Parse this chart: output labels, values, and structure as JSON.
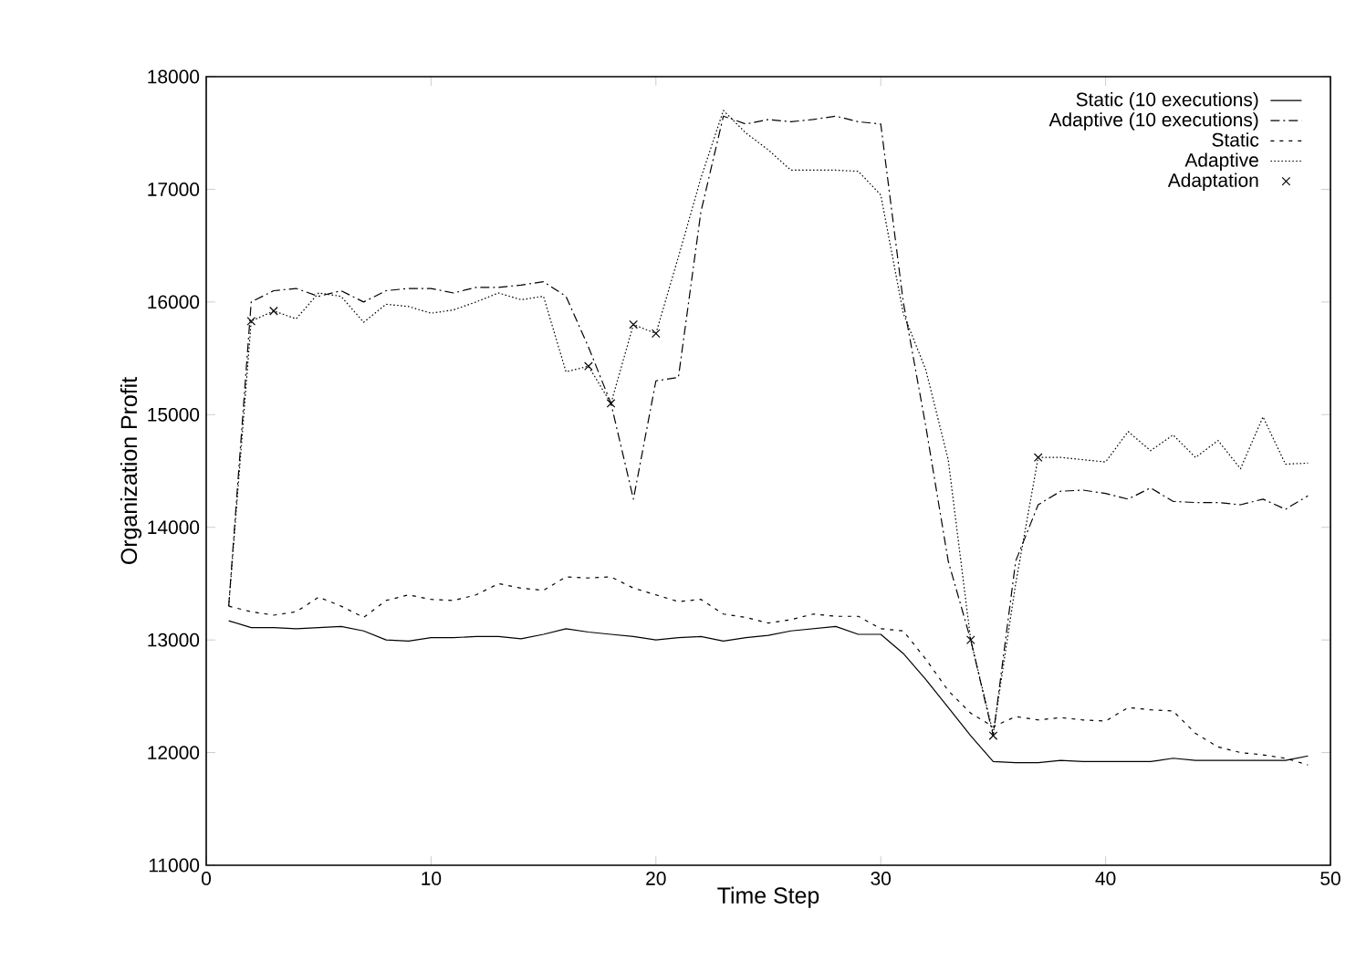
{
  "chart_data": {
    "type": "line",
    "xlabel": "Time Step",
    "ylabel": "Organization Profit",
    "x": [
      1,
      2,
      3,
      4,
      5,
      6,
      7,
      8,
      9,
      10,
      11,
      12,
      13,
      14,
      15,
      16,
      17,
      18,
      19,
      20,
      21,
      22,
      23,
      24,
      25,
      26,
      27,
      28,
      29,
      30,
      31,
      32,
      33,
      34,
      35,
      36,
      37,
      38,
      39,
      40,
      41,
      42,
      43,
      44,
      45,
      46,
      47,
      48,
      49
    ],
    "series": [
      {
        "name": "Static (10 executions)",
        "color": "#000000",
        "line_style": "solid",
        "values": [
          13170,
          13110,
          13110,
          13100,
          13110,
          13120,
          13080,
          13000,
          12990,
          13020,
          13020,
          13030,
          13030,
          13010,
          13050,
          13100,
          13070,
          13050,
          13030,
          13000,
          13020,
          13030,
          12990,
          13020,
          13040,
          13080,
          13100,
          13120,
          13050,
          13050,
          12880,
          12650,
          12400,
          12150,
          11920,
          11910,
          11910,
          11930,
          11920,
          11920,
          11920,
          11920,
          11950,
          11930,
          11930,
          11930,
          11930,
          11930,
          11970
        ]
      },
      {
        "name": "Adaptive (10 executions)",
        "color": "#000000",
        "line_style": "dashdot",
        "values": [
          13300,
          16000,
          16100,
          16120,
          16050,
          16100,
          16000,
          16100,
          16120,
          16120,
          16080,
          16130,
          16130,
          16150,
          16180,
          16050,
          15600,
          15100,
          14250,
          15300,
          15330,
          16800,
          17650,
          17580,
          17620,
          17600,
          17620,
          17650,
          17600,
          17580,
          16000,
          14900,
          13700,
          13000,
          12150,
          13700,
          14200,
          14320,
          14330,
          14300,
          14250,
          14350,
          14230,
          14220,
          14220,
          14200,
          14250,
          14160,
          14280
        ]
      },
      {
        "name": "Static",
        "color": "#000000",
        "line_style": "dashed",
        "values": [
          13300,
          13250,
          13220,
          13250,
          13380,
          13300,
          13200,
          13350,
          13400,
          13360,
          13350,
          13400,
          13500,
          13460,
          13440,
          13560,
          13550,
          13560,
          13460,
          13400,
          13340,
          13360,
          13230,
          13200,
          13150,
          13180,
          13230,
          13210,
          13210,
          13100,
          13080,
          12830,
          12550,
          12350,
          12230,
          12320,
          12290,
          12310,
          12290,
          12280,
          12400,
          12380,
          12370,
          12170,
          12050,
          12000,
          11980,
          11950,
          11890
        ]
      },
      {
        "name": "Adaptive",
        "color": "#000000",
        "line_style": "dotted",
        "values": [
          13300,
          15830,
          15920,
          15850,
          16080,
          16050,
          15820,
          15980,
          15960,
          15900,
          15930,
          16000,
          16080,
          16020,
          16050,
          15380,
          15430,
          15100,
          15800,
          15720,
          16400,
          17100,
          17700,
          17500,
          17350,
          17170,
          17170,
          17170,
          17160,
          16950,
          15900,
          15400,
          14600,
          13000,
          12170,
          13500,
          14620,
          14620,
          14600,
          14580,
          14850,
          14680,
          14820,
          14620,
          14770,
          14520,
          14980,
          14560,
          14570
        ]
      },
      {
        "name": "Adaptation",
        "type": "scatter",
        "marker": "cross",
        "color": "#000000",
        "x": [
          2,
          3,
          17,
          18,
          19,
          20,
          34,
          35,
          37
        ],
        "values": [
          15830,
          15920,
          15430,
          15100,
          15800,
          15720,
          13000,
          12150,
          14620
        ]
      }
    ],
    "xlim": [
      0,
      50
    ],
    "xticks": [
      0,
      10,
      20,
      30,
      40,
      50
    ],
    "ylim": [
      11000,
      18000
    ],
    "yticks": [
      11000,
      12000,
      13000,
      14000,
      15000,
      16000,
      17000,
      18000
    ],
    "grid": false,
    "legend": "top right"
  }
}
